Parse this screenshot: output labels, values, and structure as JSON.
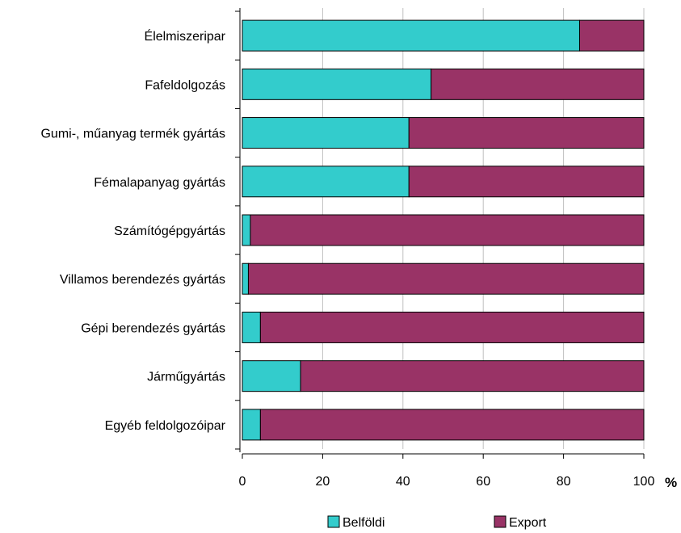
{
  "chart_data": {
    "type": "bar",
    "orientation": "horizontal",
    "stacked": true,
    "categories": [
      "Élelmiszeripar",
      "Fafeldolgozás",
      "Gumi-, műanyag termék gyártás",
      "Fémalapanyag gyártás",
      "Számítógépgyártás",
      "Villamos berendezés gyártás",
      "Gépi berendezés gyártás",
      "Járműgyártás",
      "Egyéb feldolgozóipar"
    ],
    "series": [
      {
        "name": "Belföldi",
        "color": "#33cccc",
        "values": [
          84,
          47,
          41.5,
          41.5,
          2,
          1.5,
          4.5,
          14.5,
          4.5
        ]
      },
      {
        "name": "Export",
        "color": "#993366",
        "values": [
          16,
          53,
          58.5,
          58.5,
          98,
          98.5,
          95.5,
          85.5,
          95.5
        ]
      }
    ],
    "x_ticks": [
      0,
      20,
      40,
      60,
      80,
      100
    ],
    "xlim": [
      0,
      100
    ],
    "x_unit_label": "%",
    "grid": true,
    "legend_position": "bottom"
  }
}
